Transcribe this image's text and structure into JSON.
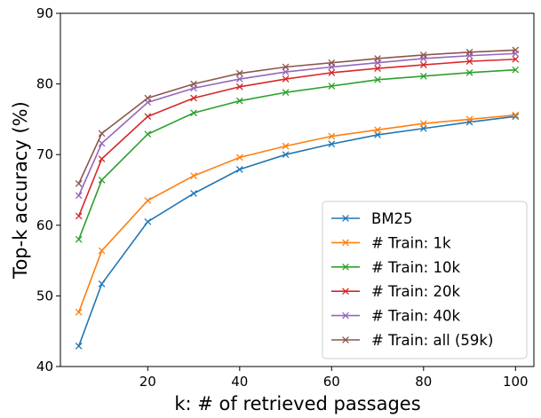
{
  "chart_data": {
    "type": "line",
    "xlabel": "k: # of retrieved passages",
    "ylabel": "Top-k accuracy (%)",
    "xlim": [
      1,
      104
    ],
    "ylim": [
      40,
      90
    ],
    "xticks": [
      20,
      40,
      60,
      80,
      100
    ],
    "yticks": [
      40,
      50,
      60,
      70,
      80,
      90
    ],
    "grid": false,
    "legend_position": "lower-right",
    "marker": "x",
    "x": [
      5,
      10,
      20,
      30,
      40,
      50,
      60,
      70,
      80,
      90,
      100
    ],
    "series": [
      {
        "name": "BM25",
        "color": "#1f77b4",
        "values": [
          42.9,
          51.7,
          60.5,
          64.5,
          67.9,
          70.0,
          71.5,
          72.8,
          73.7,
          74.6,
          75.4
        ]
      },
      {
        "name": "# Train: 1k",
        "color": "#ff7f0e",
        "values": [
          47.7,
          56.4,
          63.5,
          67.0,
          69.6,
          71.2,
          72.6,
          73.5,
          74.4,
          75.0,
          75.6
        ]
      },
      {
        "name": "# Train: 10k",
        "color": "#2ca02c",
        "values": [
          58.0,
          66.4,
          72.9,
          75.9,
          77.6,
          78.8,
          79.7,
          80.6,
          81.1,
          81.6,
          82.0
        ]
      },
      {
        "name": "# Train: 20k",
        "color": "#d62728",
        "values": [
          61.3,
          69.4,
          75.4,
          78.0,
          79.6,
          80.7,
          81.6,
          82.2,
          82.7,
          83.2,
          83.5
        ]
      },
      {
        "name": "# Train: 40k",
        "color": "#9467bd",
        "values": [
          64.2,
          71.6,
          77.4,
          79.4,
          80.7,
          81.7,
          82.4,
          83.0,
          83.6,
          84.0,
          84.3
        ]
      },
      {
        "name": "# Train: all (59k)",
        "color": "#8c564b",
        "values": [
          65.9,
          73.0,
          78.0,
          80.0,
          81.5,
          82.4,
          83.0,
          83.6,
          84.1,
          84.5,
          84.8
        ]
      }
    ]
  }
}
